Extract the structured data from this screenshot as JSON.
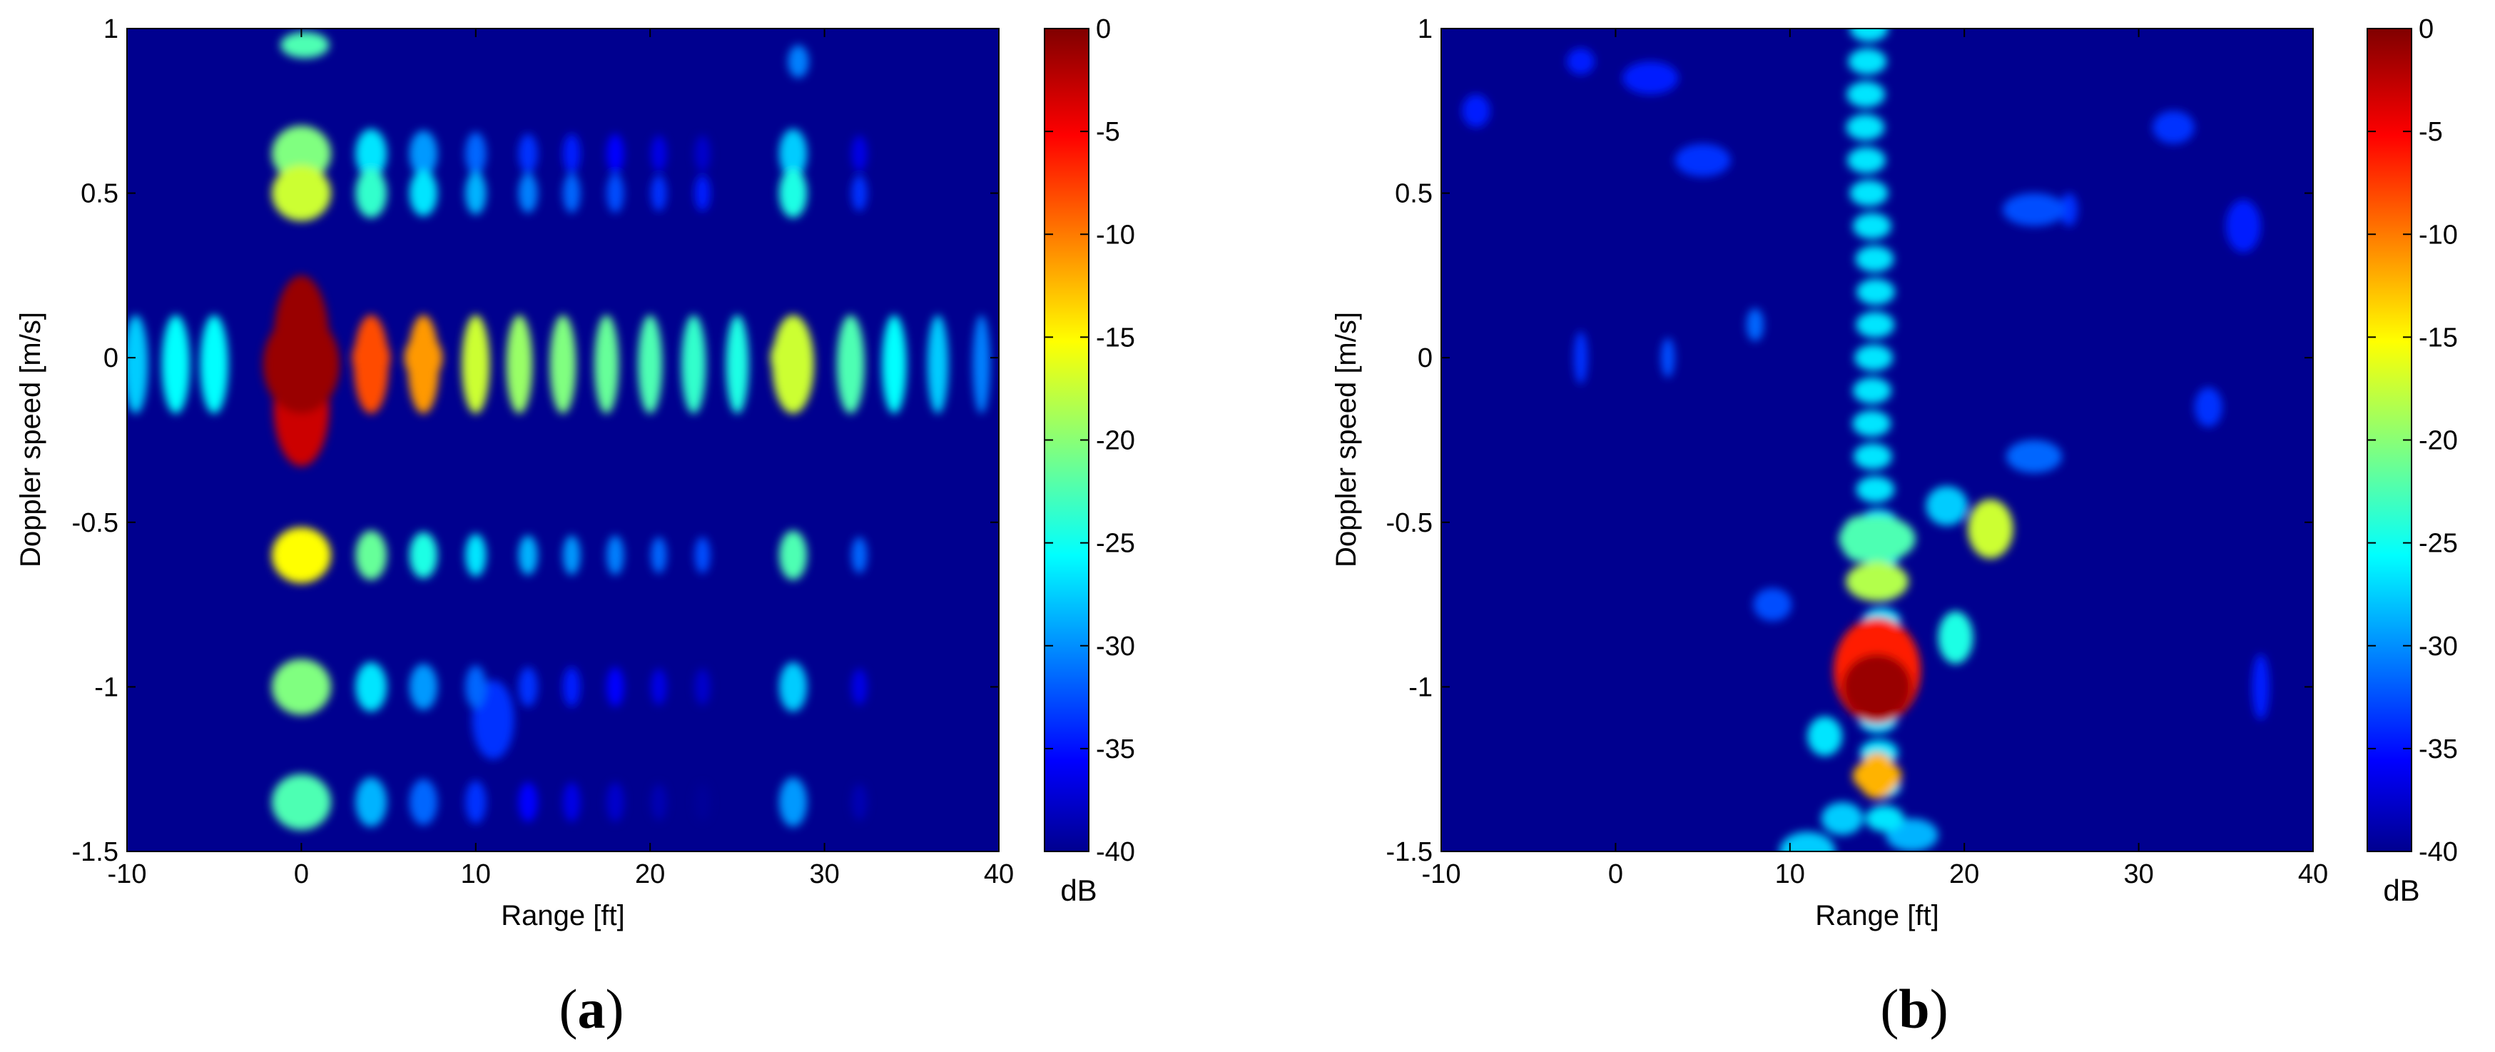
{
  "chart_data": [
    {
      "type": "heatmap",
      "panel_label": "a",
      "xlabel": "Range [ft]",
      "ylabel": "Doppler speed [m/s]",
      "xlim": [
        -10,
        40
      ],
      "ylim": [
        -1.5,
        1
      ],
      "xticks": [
        "-10",
        "0",
        "10",
        "20",
        "30",
        "40"
      ],
      "yticks": [
        "1",
        "0.5",
        "0",
        "-0.5",
        "-1",
        "-1.5"
      ],
      "colorbar": {
        "range": [
          -40,
          0
        ],
        "unit": "dB",
        "ticks": [
          "0",
          "-5",
          "-10",
          "-15",
          "-20",
          "-25",
          "-30",
          "-35",
          "-40"
        ],
        "colormap": "jet"
      },
      "features": [
        {
          "range_ft": 0,
          "speed_mps": 0,
          "level_db": -1
        },
        {
          "range_ft": 4,
          "speed_mps": 0,
          "level_db": -8
        },
        {
          "range_ft": 7,
          "speed_mps": 0,
          "level_db": -11
        },
        {
          "range_ft": 28,
          "speed_mps": 0,
          "level_db": -17
        },
        {
          "range_ft": 0,
          "speed_mps": 0.5,
          "level_db": -17
        },
        {
          "range_ft": 0,
          "speed_mps": -0.6,
          "level_db": -15
        },
        {
          "range_ft": 0,
          "speed_mps": -1.0,
          "level_db": -20
        },
        {
          "range_ft": 0,
          "speed_mps": -1.35,
          "level_db": -22
        }
      ]
    },
    {
      "type": "heatmap",
      "panel_label": "b",
      "xlabel": "Range [ft]",
      "ylabel": "Doppler speed [m/s]",
      "xlim": [
        -10,
        40
      ],
      "ylim": [
        -1.5,
        1
      ],
      "xticks": [
        "-10",
        "0",
        "10",
        "20",
        "30",
        "40"
      ],
      "yticks": [
        "1",
        "0.5",
        "0",
        "-0.5",
        "-1",
        "-1.5"
      ],
      "colorbar": {
        "range": [
          -40,
          0
        ],
        "unit": "dB",
        "ticks": [
          "0",
          "-5",
          "-10",
          "-15",
          "-20",
          "-25",
          "-30",
          "-35",
          "-40"
        ],
        "colormap": "jet"
      },
      "features": [
        {
          "range_ft": 15,
          "speed_mps": -1.0,
          "level_db": -1
        },
        {
          "range_ft": 15,
          "speed_mps": -1.27,
          "level_db": -12
        },
        {
          "range_ft": 21.5,
          "speed_mps": -0.52,
          "level_db": -17
        },
        {
          "range_ft": 14,
          "speed_mps": -0.55,
          "level_db": -22
        }
      ]
    }
  ]
}
